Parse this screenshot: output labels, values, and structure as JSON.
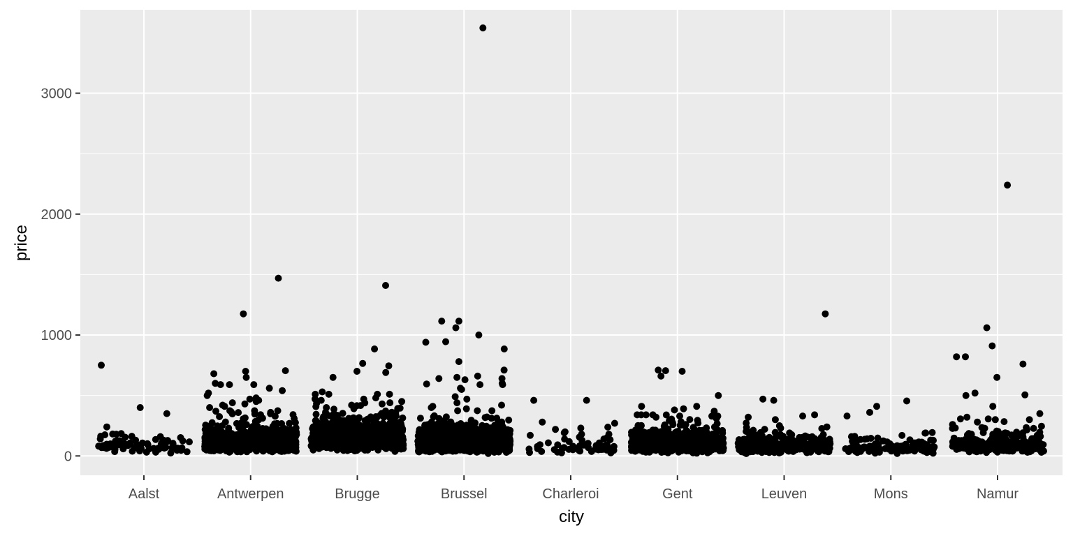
{
  "chart_data": {
    "type": "scatter",
    "title": "",
    "xlabel": "city",
    "ylabel": "price",
    "categories": [
      "Aalst",
      "Antwerpen",
      "Brugge",
      "Brussel",
      "Charleroi",
      "Gent",
      "Leuven",
      "Mons",
      "Namur"
    ],
    "ylim": [
      -160,
      3690
    ],
    "yticks": [
      0,
      1000,
      2000,
      3000
    ],
    "ytick_labels": [
      "0",
      "1000",
      "2000",
      "3000"
    ],
    "grid": true,
    "colors": {
      "panel": "#ebebeb",
      "grid": "#ffffff",
      "point": "#000000"
    },
    "series": [
      {
        "name": "Aalst",
        "count": 80,
        "median": 75,
        "outliers": [
          750,
          400,
          350,
          240,
          180,
          175,
          160,
          130
        ]
      },
      {
        "name": "Antwerpen",
        "count": 900,
        "median": 110,
        "outliers": [
          1470,
          1175,
          705,
          700,
          680,
          650,
          600,
          590,
          590,
          590,
          560,
          540,
          520,
          500,
          480,
          470,
          460,
          450,
          440,
          430,
          420,
          410,
          400
        ]
      },
      {
        "name": "Brugge",
        "count": 900,
        "median": 150,
        "outliers": [
          1410,
          885,
          765,
          745,
          700,
          690,
          650,
          530,
          480,
          470,
          460,
          450,
          440,
          430,
          420,
          410
        ]
      },
      {
        "name": "Brussel",
        "count": 1400,
        "median": 110,
        "outliers": [
          3540,
          1115,
          1115,
          1060,
          1000,
          945,
          940,
          885,
          780,
          710,
          660,
          650,
          640,
          640,
          630,
          600,
          595,
          590,
          590,
          560,
          550,
          490,
          470,
          440,
          420,
          410,
          400,
          390
        ]
      },
      {
        "name": "Charleroi",
        "count": 60,
        "median": 70,
        "outliers": [
          460,
          460,
          280,
          270,
          230,
          220,
          180,
          170
        ]
      },
      {
        "name": "Gent",
        "count": 700,
        "median": 100,
        "outliers": [
          710,
          705,
          700,
          660,
          500,
          410,
          410,
          390,
          380,
          370,
          340,
          330,
          320
        ]
      },
      {
        "name": "Leuven",
        "count": 400,
        "median": 80,
        "outliers": [
          1175,
          470,
          460,
          340,
          330,
          320,
          300,
          250,
          240,
          230
        ]
      },
      {
        "name": "Mons",
        "count": 130,
        "median": 70,
        "outliers": [
          455,
          410,
          360,
          330,
          190,
          160
        ]
      },
      {
        "name": "Namur",
        "count": 300,
        "median": 90,
        "outliers": [
          2240,
          1060,
          910,
          820,
          820,
          760,
          650,
          520,
          505,
          500,
          410,
          350,
          320,
          300,
          260
        ]
      }
    ]
  }
}
